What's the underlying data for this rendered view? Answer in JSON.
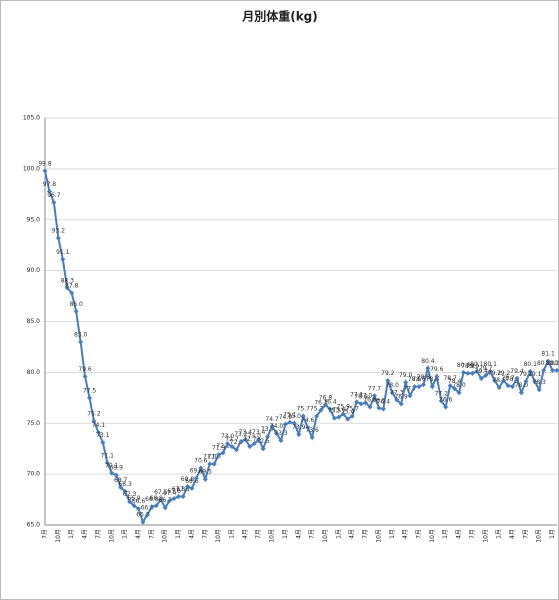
{
  "chart_data": {
    "type": "line",
    "title": "月別体重(kg)",
    "categories": [
      "7月",
      null,
      null,
      "10月",
      null,
      null,
      "1月",
      null,
      null,
      "4月",
      null,
      null,
      "7月",
      null,
      null,
      "10月",
      null,
      null,
      "1月",
      null,
      null,
      "4月",
      null,
      null,
      "7月",
      null,
      null,
      "10月",
      null,
      null,
      "1月",
      null,
      null,
      "4月",
      null,
      null,
      "7月",
      null,
      null,
      "10月",
      null,
      null,
      "1月",
      null,
      null,
      "4月",
      null,
      null,
      "7月",
      null,
      null,
      "10月",
      null,
      null,
      "1月",
      null,
      null,
      "4月",
      null,
      null,
      "7月",
      null,
      null,
      "10月",
      null,
      null,
      "1月",
      null,
      null,
      "4月",
      null,
      null,
      "7月",
      null,
      null,
      "10月",
      null,
      null,
      "1月",
      null,
      null,
      "4月",
      null,
      null,
      "7月",
      null,
      null,
      "10月",
      null,
      null,
      "1月",
      null,
      null,
      "4月",
      null,
      null,
      "7月",
      null,
      null,
      "10月",
      null,
      null,
      "1月",
      null,
      null,
      "4月",
      null,
      null,
      "7月",
      null,
      null,
      "10月",
      null,
      null,
      "1月",
      null
    ],
    "series": [
      {
        "name": "体重",
        "color": "#4a7ebb",
        "values": [
          99.8,
          97.8,
          96.7,
          93.2,
          91.1,
          88.3,
          87.8,
          86.0,
          83.0,
          79.6,
          77.5,
          75.2,
          74.1,
          73.1,
          71.1,
          70.1,
          69.9,
          68.7,
          68.3,
          67.3,
          66.9,
          66.6,
          65.3,
          66.0,
          66.8,
          66.9,
          67.5,
          66.7,
          67.4,
          67.6,
          67.8,
          67.8,
          68.8,
          68.6,
          69.6,
          70.6,
          69.5,
          71.0,
          71.0,
          71.9,
          72.1,
          73.0,
          72.7,
          72.4,
          73.2,
          73.4,
          72.7,
          73.0,
          73.4,
          72.5,
          73.7,
          74.7,
          74.0,
          73.3,
          74.9,
          75.1,
          75.0,
          73.9,
          75.7,
          74.6,
          73.6,
          75.7,
          76.3,
          76.8,
          76.4,
          75.5,
          75.6,
          75.9,
          75.4,
          75.7,
          77.1,
          76.9,
          77.0,
          76.6,
          77.7,
          76.5,
          76.4,
          79.2,
          78.0,
          77.3,
          76.9,
          79.0,
          77.7,
          78.6,
          78.6,
          78.8,
          80.4,
          78.6,
          79.6,
          77.2,
          76.6,
          78.7,
          78.4,
          78.0,
          80.0,
          79.9,
          79.9,
          80.1,
          79.4,
          79.7,
          80.1,
          79.2,
          78.5,
          79.2,
          78.7,
          78.6,
          79.4,
          78.0,
          79.1,
          80.1,
          79.1,
          78.3,
          80.2,
          81.1,
          80.2,
          80.2
        ],
        "value_labels": [
          "99.8",
          "97.8",
          "96.7",
          "93.2",
          "91.1",
          "88.3",
          "87.8",
          "86.0",
          "83.0",
          "79.6",
          "77.5",
          "75.2",
          "74.1",
          "73.1",
          "71.1",
          "70.1",
          "69.9",
          "68.7",
          "68.3",
          "67.3",
          "66.9",
          "66.6",
          "65.3",
          "66.0",
          "66.8",
          "66.9",
          "67.5",
          "66.7",
          "67.4",
          "67.6",
          "67.8",
          "67.8",
          "68.8",
          "68.6",
          "69.6",
          "70.6",
          "69.5",
          "71.0",
          "71.0",
          "71.9",
          "72.1",
          "73.0",
          "72.7",
          "72.4",
          "73.2",
          "73.4",
          "72.7",
          "73.0",
          "73.4",
          "72.5",
          "73.7",
          "74.7",
          "74.0",
          "73.3",
          "74.9",
          "75.1",
          "75.0",
          "73.9",
          "75.7",
          "74.6",
          "73.6",
          "75.7",
          "76.3",
          "76.8",
          "76.4",
          "75.5",
          "75.6",
          "75.9",
          "75.4",
          "75.7",
          "77.1",
          "76.9",
          "77.0",
          "76.6",
          "77.7",
          "76.5",
          "76.4",
          "79.2",
          "78.0",
          "77.3",
          "76.9",
          "79.0",
          "77.7",
          "78.6",
          "78.6",
          "78.8",
          "80.4",
          "78.6",
          "79.6",
          "77.2",
          "76.6",
          "78.7",
          "78.4",
          "78.0",
          "80.0",
          "79.9",
          "79.9",
          "80.1",
          "79.4",
          "79.7",
          "80.1",
          "79.2",
          "78.5",
          "79.2",
          "78.7",
          "78.6",
          "79.4",
          "78.0",
          "79.1",
          "80.1",
          "79.1",
          "78.3",
          "80.2",
          "81.1",
          "80.2",
          "80.2"
        ]
      }
    ],
    "ylim": [
      65,
      105
    ],
    "yticks": [
      {
        "value": 65,
        "label": "65.0"
      },
      {
        "value": 70,
        "label": "70.0"
      },
      {
        "value": 75,
        "label": "75.0"
      },
      {
        "value": 80,
        "label": "80.0"
      },
      {
        "value": 85,
        "label": "85.0"
      },
      {
        "value": 90,
        "label": "90.0"
      },
      {
        "value": 95,
        "label": "95.0"
      },
      {
        "value": 100,
        "label": "100.0"
      },
      {
        "value": 105,
        "label": "105.0"
      }
    ],
    "grid": true
  }
}
